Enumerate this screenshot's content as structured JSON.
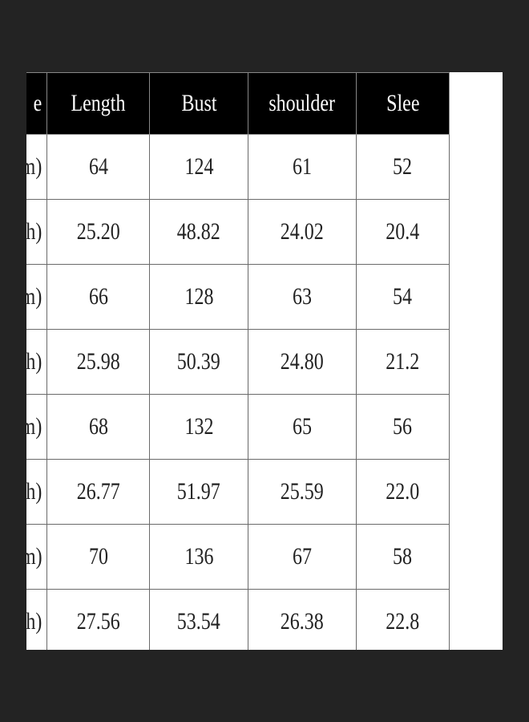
{
  "table": {
    "header": [
      "e",
      "Length",
      "Bust",
      "shoulder",
      "Slee"
    ],
    "rows": [
      [
        "m)",
        "64",
        "124",
        "61",
        "52"
      ],
      [
        "ch)",
        "25.20",
        "48.82",
        "24.02",
        "20.4"
      ],
      [
        "m)",
        "66",
        "128",
        "63",
        "54"
      ],
      [
        "ch)",
        "25.98",
        "50.39",
        "24.80",
        "21.2"
      ],
      [
        "m)",
        "68",
        "132",
        "65",
        "56"
      ],
      [
        "ch)",
        "26.77",
        "51.97",
        "25.59",
        "22.0"
      ],
      [
        "cm)",
        "70",
        "136",
        "67",
        "58"
      ],
      [
        "nch)",
        "27.56",
        "53.54",
        "26.38",
        "22.8"
      ]
    ]
  }
}
